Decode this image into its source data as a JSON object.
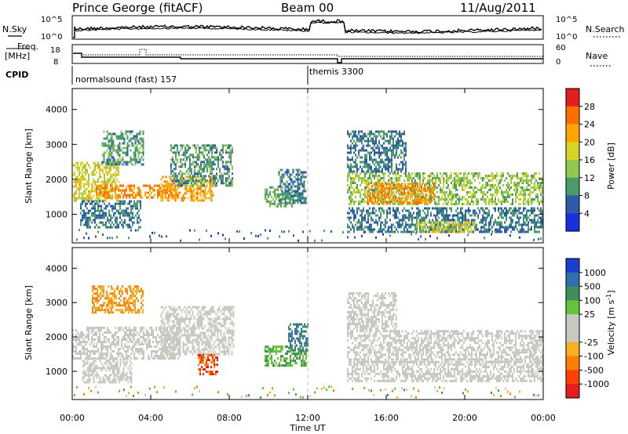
{
  "header": {
    "station": "Prince George (fitACF)",
    "beam": "Beam 00",
    "date": "11/Aug/2011"
  },
  "noise_panel": {
    "left_label": "N.Sky",
    "right_label": "N.Search",
    "left_ticks": [
      "10^5",
      "10^0"
    ],
    "right_ticks": [
      "10^5",
      "10^0"
    ]
  },
  "freq_panel": {
    "left_label_1": "Freq.",
    "left_label_2": "[MHz]",
    "right_label": "Nave",
    "left_ticks": [
      "18",
      "8"
    ],
    "right_ticks": [
      "60",
      "0"
    ]
  },
  "cpid": {
    "label": "CPID",
    "modes": [
      {
        "name": "normalsound (fast) 157",
        "start_hour": 0
      },
      {
        "name": "themis 3300",
        "start_hour": 12
      }
    ]
  },
  "chart_data": [
    {
      "type": "heatmap",
      "name": "power",
      "ylabel": "Slant Range [km]",
      "xlabel": "",
      "ylim": [
        180,
        4600
      ],
      "yticks": [
        "1000",
        "2000",
        "3000",
        "4000"
      ],
      "xlim_hours": [
        0,
        24
      ],
      "colorbar_label": "Power [dB]",
      "colorbar_ticks": [
        "28",
        "24",
        "20",
        "16",
        "12",
        "8",
        "4"
      ],
      "colorbar_colors": [
        "#e41e1e",
        "#ff6f00",
        "#ffa500",
        "#d7d427",
        "#8fc84a",
        "#4a9a6a",
        "#2f5aa8",
        "#1a2fe0"
      ],
      "echo_regions": [
        {
          "t0": 0.0,
          "t1": 2.4,
          "r0": 1400,
          "r1": 2500,
          "level": 18
        },
        {
          "t0": 1.5,
          "t1": 3.6,
          "r0": 2400,
          "r1": 3400,
          "level": 10
        },
        {
          "t0": 1.2,
          "t1": 5.5,
          "r0": 1500,
          "r1": 1850,
          "level": 24
        },
        {
          "t0": 4.5,
          "t1": 7.2,
          "r0": 1400,
          "r1": 2100,
          "level": 22
        },
        {
          "t0": 5.0,
          "t1": 8.2,
          "r0": 1800,
          "r1": 3000,
          "level": 10
        },
        {
          "t0": 0.4,
          "t1": 3.5,
          "r0": 600,
          "r1": 1400,
          "level": 8
        },
        {
          "t0": 9.8,
          "t1": 11.2,
          "r0": 1200,
          "r1": 1800,
          "level": 12
        },
        {
          "t0": 10.5,
          "t1": 11.9,
          "r0": 1300,
          "r1": 2300,
          "level": 8
        },
        {
          "t0": 14.0,
          "t1": 24.0,
          "r0": 1300,
          "r1": 2200,
          "level": 14
        },
        {
          "t0": 15.0,
          "t1": 18.5,
          "r0": 1300,
          "r1": 1900,
          "level": 24
        },
        {
          "t0": 14.0,
          "t1": 24.0,
          "r0": 500,
          "r1": 1200,
          "level": 8
        },
        {
          "t0": 17.5,
          "t1": 20.5,
          "r0": 500,
          "r1": 800,
          "level": 18
        },
        {
          "t0": 14.0,
          "t1": 17.0,
          "r0": 2200,
          "r1": 3400,
          "level": 8
        }
      ]
    },
    {
      "type": "heatmap",
      "name": "velocity",
      "ylabel": "Slant Range [km]",
      "xlabel": "Time UT",
      "ylim": [
        180,
        4600
      ],
      "yticks": [
        "1000",
        "2000",
        "3000",
        "4000"
      ],
      "xticks": [
        "00:00",
        "04:00",
        "08:00",
        "12:00",
        "16:00",
        "20:00",
        "00:00"
      ],
      "xlim_hours": [
        0,
        24
      ],
      "colorbar_label": "Velocity [m s^-1]",
      "colorbar_ticks": [
        "1000",
        "500",
        "100",
        "25",
        "-25",
        "-100",
        "-500",
        "-1000"
      ],
      "colorbar_colors": [
        "#1a3fd0",
        "#2f6fb0",
        "#3e8f5a",
        "#64c43a",
        "#c8c8c0",
        "#c8c8c0",
        "#f5b020",
        "#ff8000",
        "#ff4000",
        "#e41e1e"
      ],
      "echo_regions": [
        {
          "t0": 0.0,
          "t1": 5.5,
          "r0": 1400,
          "r1": 2300,
          "level": 0
        },
        {
          "t0": 4.5,
          "t1": 8.2,
          "r0": 1500,
          "r1": 2900,
          "level": 0
        },
        {
          "t0": 6.4,
          "t1": 7.4,
          "r0": 900,
          "r1": 1500,
          "level": -500
        },
        {
          "t0": 1.0,
          "t1": 3.6,
          "r0": 2700,
          "r1": 3500,
          "level": -100
        },
        {
          "t0": 0.5,
          "t1": 3.0,
          "r0": 700,
          "r1": 1400,
          "level": 0
        },
        {
          "t0": 9.8,
          "t1": 11.9,
          "r0": 1200,
          "r1": 1750,
          "level": 100
        },
        {
          "t0": 11.0,
          "t1": 12.0,
          "r0": 1600,
          "r1": 2400,
          "level": 500
        },
        {
          "t0": 14.0,
          "t1": 24.0,
          "r0": 1300,
          "r1": 2200,
          "level": 0
        },
        {
          "t0": 14.0,
          "t1": 24.0,
          "r0": 700,
          "r1": 1300,
          "level": 0
        },
        {
          "t0": 14.0,
          "t1": 16.5,
          "r0": 2200,
          "r1": 3300,
          "level": 0
        }
      ]
    }
  ]
}
